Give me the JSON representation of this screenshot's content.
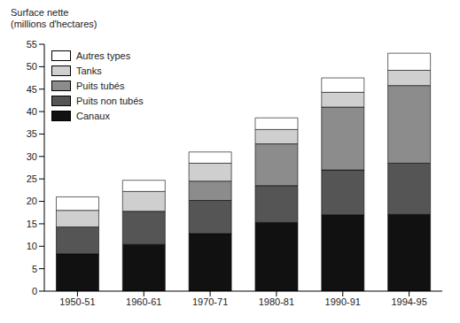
{
  "chart_data": {
    "type": "bar",
    "stacked": true,
    "y_label": [
      "Surface nette",
      "(millions d'hectares)"
    ],
    "categories": [
      "1950-51",
      "1960-61",
      "1970-71",
      "1980-81",
      "1990-91",
      "1994-95"
    ],
    "series": [
      {
        "name": "Canaux",
        "color": "#111111",
        "values": [
          8.3,
          10.4,
          12.8,
          15.3,
          17.0,
          17.1
        ]
      },
      {
        "name": "Puits non tubés",
        "color": "#555555",
        "values": [
          6.0,
          7.4,
          7.4,
          8.2,
          10.0,
          11.4
        ]
      },
      {
        "name": "Puits tubés",
        "color": "#8c8c8c",
        "values": [
          0,
          0,
          4.3,
          9.3,
          14.0,
          17.3
        ]
      },
      {
        "name": "Tanks",
        "color": "#cfcfcf",
        "values": [
          3.7,
          4.4,
          4.0,
          3.2,
          3.3,
          3.4
        ]
      },
      {
        "name": "Autres types",
        "color": "#ffffff",
        "values": [
          3.0,
          2.5,
          2.5,
          2.6,
          3.2,
          3.8
        ]
      }
    ],
    "ylim": [
      0,
      55
    ],
    "yticks": [
      0,
      5,
      10,
      15,
      20,
      25,
      30,
      35,
      40,
      45,
      50,
      55
    ],
    "grid": false,
    "legend": "top-left"
  }
}
